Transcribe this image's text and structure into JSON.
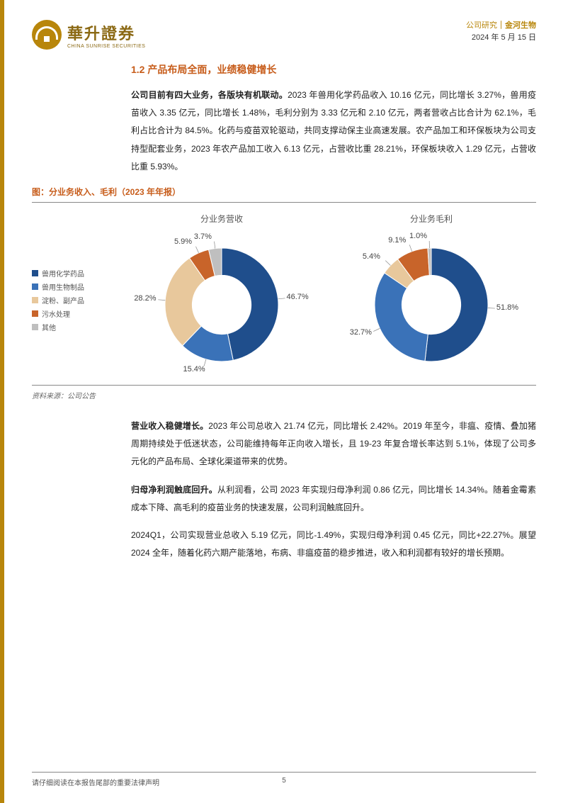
{
  "header": {
    "logo_cn": "華升證券",
    "logo_en": "CHINA SUNRISE SECURITIES",
    "research_type": "公司研究",
    "company": "金河生物",
    "date": "2024 年 5 月 15 日"
  },
  "section_title": "1.2 产品布局全面，业绩稳健增长",
  "para1_lead": "公司目前有四大业务，各版块有机联动。",
  "para1_body": "2023 年兽用化学药品收入 10.16 亿元，同比增长 3.27%，兽用疫苗收入 3.35 亿元，同比增长 1.48%，毛利分别为 3.33 亿元和 2.10 亿元，两者营收占比合计为 62.1%，毛利占比合计为 84.5%。化药与疫苗双轮驱动，共同支撑动保主业高速发展。农产品加工和环保板块为公司支持型配套业务，2023 年农产品加工收入 6.13 亿元，占营收比重 28.21%，环保板块收入 1.29 亿元，占营收比重 5.93%。",
  "figure_title": "图：分业务收入、毛利（2023 年年报）",
  "chart_left_title": "分业务营收",
  "chart_right_title": "分业务毛利",
  "legend_items": [
    {
      "label": "兽用化学药品",
      "color": "#1f4e8c"
    },
    {
      "label": "兽用生物制品",
      "color": "#3a72b8"
    },
    {
      "label": "淀粉、副产品",
      "color": "#e8c89c"
    },
    {
      "label": "污水处理",
      "color": "#c8642a"
    },
    {
      "label": "其他",
      "color": "#bfbfbf"
    }
  ],
  "revenue_chart": {
    "type": "donut",
    "inner_radius": 0.52,
    "slices": [
      {
        "label": "46.7%",
        "value": 46.7,
        "color": "#1f4e8c"
      },
      {
        "label": "15.4%",
        "value": 15.4,
        "color": "#3a72b8"
      },
      {
        "label": "28.2%",
        "value": 28.2,
        "color": "#e8c89c"
      },
      {
        "label": "5.9%",
        "value": 5.9,
        "color": "#c8642a"
      },
      {
        "label": "3.7%",
        "value": 3.7,
        "color": "#bfbfbf"
      }
    ]
  },
  "profit_chart": {
    "type": "donut",
    "inner_radius": 0.52,
    "slices": [
      {
        "label": "51.8%",
        "value": 51.8,
        "color": "#1f4e8c"
      },
      {
        "label": "32.7%",
        "value": 32.7,
        "color": "#3a72b8"
      },
      {
        "label": "5.4%",
        "value": 5.4,
        "color": "#e8c89c"
      },
      {
        "label": "9.1%",
        "value": 9.1,
        "color": "#c8642a"
      },
      {
        "label": "1.0%",
        "value": 1.0,
        "color": "#bfbfbf"
      }
    ]
  },
  "source": "资料来源：公司公告",
  "para2_lead": "营业收入稳健增长。",
  "para2_body": "2023 年公司总收入 21.74 亿元，同比增长 2.42%。2019 年至今，非瘟、疫情、叠加猪周期持续处于低迷状态，公司能维持每年正向收入增长，且 19-23 年复合增长率达到 5.1%，体现了公司多元化的产品布局、全球化渠道带来的优势。",
  "para3_lead": "归母净利润触底回升。",
  "para3_body": "从利润看，公司 2023 年实现归母净利润 0.86 亿元，同比增长 14.34%。随着金霉素成本下降、高毛利的疫苗业务的快速发展，公司利润触底回升。",
  "para4": "2024Q1，公司实现营业总收入 5.19 亿元，同比-1.49%，实现归母净利润 0.45 亿元，同比+22.27%。展望 2024 全年，随着化药六期产能落地，布病、非瘟疫苗的稳步推进，收入和利润都有较好的增长预期。",
  "footer": {
    "disclaimer": "请仔细阅读在本报告尾部的重要法律声明",
    "page": "5"
  }
}
